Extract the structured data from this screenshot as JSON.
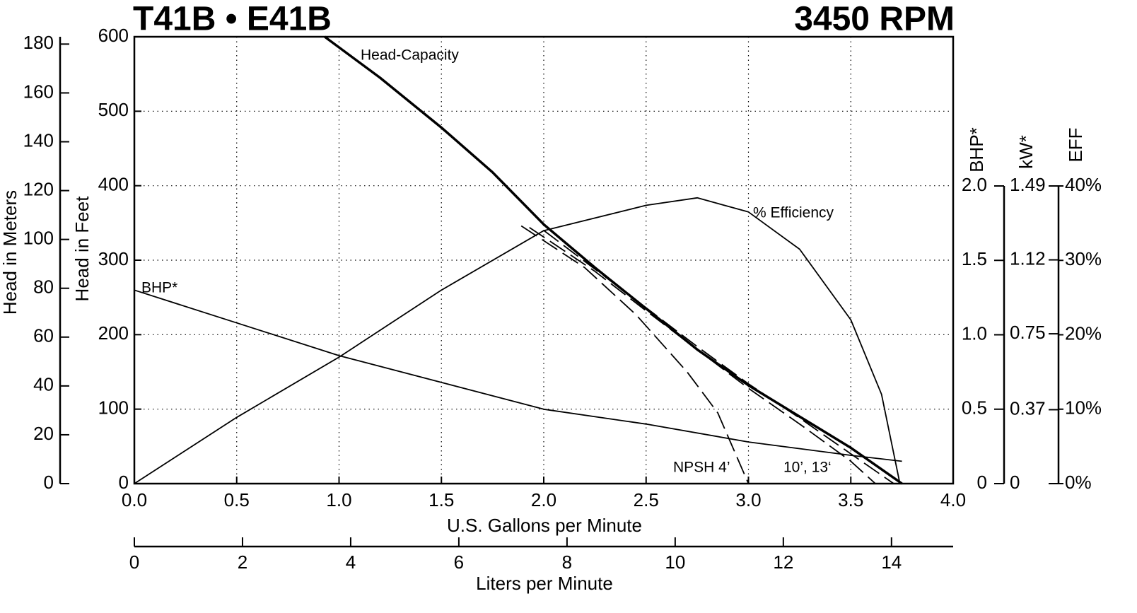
{
  "chart_data": {
    "type": "line",
    "title": "T41B • E41B",
    "subtitle": "3450 RPM",
    "x_label": "U.S. Gallons per Minute",
    "x2_label": "Liters per Minute",
    "y_label": "Head in Feet",
    "y_meters_label": "Head in Meters",
    "y2_label": "BHP*",
    "y_kw_label": "kW*",
    "y_eff_label": "EFF",
    "grid": true,
    "xlim": [
      0,
      4
    ],
    "xticks": [
      {
        "value": 0,
        "label": "0.0"
      },
      0.5,
      {
        "value": 1,
        "label": "1.0"
      },
      1.5,
      {
        "value": 2,
        "label": "2.0"
      },
      2.5,
      {
        "value": 3,
        "label": "3.0"
      },
      3.5,
      {
        "value": 4,
        "label": "4.0"
      }
    ],
    "x2lim": [
      0,
      15.14
    ],
    "x2ticks": [
      0,
      2,
      4,
      6,
      8,
      10,
      12,
      14
    ],
    "ylim": [
      0,
      600
    ],
    "yticks": [
      0,
      100,
      200,
      300,
      400,
      500,
      600
    ],
    "y_meters_lim": [
      0,
      183
    ],
    "y_meters_ticks": [
      0,
      20,
      40,
      60,
      80,
      100,
      120,
      140,
      160,
      180
    ],
    "y2lim": [
      0,
      2
    ],
    "y2ticks": [
      0,
      0.5,
      {
        "value": 1,
        "label": "1.0"
      },
      1.5,
      {
        "value": 2,
        "label": "2.0"
      }
    ],
    "y_kw_lim": [
      0,
      1.49
    ],
    "y_kw_ticks": [
      0,
      0.37,
      0.75,
      1.12,
      1.49
    ],
    "y_eff_lim": [
      0,
      40
    ],
    "y_eff_ticks": [
      {
        "value": 0,
        "label": "0%"
      },
      {
        "value": 10,
        "label": "10%"
      },
      {
        "value": 20,
        "label": "20%"
      },
      {
        "value": 30,
        "label": "30%"
      },
      {
        "value": 40,
        "label": "40%"
      }
    ],
    "series": [
      {
        "name": "Head-Capacity",
        "color": "#000000",
        "style": "thick",
        "axis": "y",
        "x": [
          0.93,
          1.2,
          1.5,
          1.75,
          2.0,
          2.25,
          2.5,
          2.75,
          3.0,
          3.25,
          3.5,
          3.75
        ],
        "values": [
          600,
          545,
          478,
          418,
          348,
          290,
          235,
          180,
          132,
          90,
          48,
          0
        ]
      },
      {
        "name": "% Efficiency",
        "color": "#000000",
        "style": "solid",
        "axis": "y_eff",
        "x": [
          0,
          0.5,
          1.0,
          1.5,
          2.0,
          2.5,
          2.75,
          3.0,
          3.25,
          3.5,
          3.65,
          3.74
        ],
        "values": [
          0,
          8.9,
          17,
          26,
          34,
          37.4,
          38.4,
          36.5,
          31.5,
          22,
          12,
          0
        ]
      },
      {
        "name": "BHP*",
        "color": "#000000",
        "style": "solid",
        "axis": "y2",
        "x": [
          0,
          0.5,
          1.0,
          1.5,
          2.0,
          2.5,
          3.0,
          3.5,
          3.75
        ],
        "values": [
          1.3,
          1.08,
          0.86,
          0.68,
          0.5,
          0.4,
          0.28,
          0.19,
          0.15
        ]
      },
      {
        "name": "NPSH 4’",
        "color": "#000000",
        "style": "dashed",
        "axis": "y",
        "x": [
          1.89,
          2.2,
          2.45,
          2.7,
          2.85,
          3.0
        ],
        "values": [
          346,
          290,
          227,
          150,
          95,
          0
        ]
      },
      {
        "color": "#000000",
        "style": "dashed",
        "axis": "y",
        "x": [
          1.93,
          2.25,
          2.5,
          2.75,
          3.0,
          3.25,
          3.5,
          3.62
        ],
        "values": [
          344,
          285,
          232,
          180,
          128,
          80,
          30,
          0
        ]
      },
      {
        "color": "#000000",
        "style": "dashed",
        "axis": "y",
        "x": [
          2.0,
          2.25,
          2.5,
          2.75,
          3.0,
          3.25,
          3.5,
          3.71
        ],
        "values": [
          340,
          288,
          236,
          184,
          134,
          88,
          40,
          0
        ]
      }
    ],
    "annotations": [
      "10’, 13‘"
    ]
  }
}
